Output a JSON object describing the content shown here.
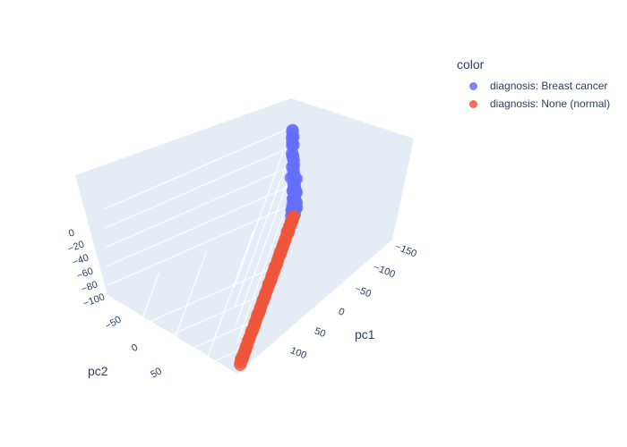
{
  "chart_data": {
    "type": "scatter",
    "dimensions": "3d",
    "axes": {
      "x": {
        "title": "pc1",
        "ticks": [
          -150,
          -100,
          -50,
          0,
          50,
          100
        ]
      },
      "y": {
        "title": "pc2",
        "ticks": [
          -50,
          0,
          50
        ]
      },
      "z": {
        "title": "",
        "ticks": [
          -100,
          -80,
          -60,
          -40,
          -20,
          0
        ]
      }
    },
    "legend": {
      "title": "color",
      "placement": "top-right",
      "entries": [
        {
          "label": "diagnosis: Breast cancer",
          "color": "#636efa"
        },
        {
          "label": "diagnosis: None (normal)",
          "color": "#EF553B"
        }
      ]
    },
    "series": [
      {
        "name": "diagnosis: Breast cancer",
        "color": "#636efa",
        "points": [
          [
            -150,
            -45,
            -5
          ],
          [
            -148,
            -45,
            -15
          ],
          [
            -145,
            -45,
            -25
          ],
          [
            -150,
            -45,
            -35
          ],
          [
            -148,
            -45,
            -10
          ],
          [
            -152,
            -45,
            -20
          ],
          [
            -146,
            -45,
            -28
          ],
          [
            -150,
            -45,
            -40
          ],
          [
            -148,
            -45,
            -45
          ],
          [
            -145,
            -45,
            -50
          ],
          [
            -152,
            -45,
            -55
          ],
          [
            -150,
            -45,
            -60
          ],
          [
            -147,
            -45,
            -63
          ],
          [
            -145,
            -45,
            -66
          ],
          [
            -150,
            -45,
            -68
          ],
          [
            -153,
            -45,
            -70
          ],
          [
            -148,
            -45,
            -72
          ],
          [
            -143,
            -45,
            -74
          ],
          [
            -140,
            -45,
            -78
          ],
          [
            -135,
            -45,
            -80
          ],
          [
            -146,
            -45,
            -83
          ],
          [
            -150,
            -45,
            -85
          ],
          [
            -142,
            -45,
            -86
          ],
          [
            -138,
            -45,
            -87
          ],
          [
            -156,
            -45,
            -88
          ],
          [
            -130,
            -45,
            -82
          ],
          [
            -160,
            -45,
            -60
          ],
          [
            -140,
            -45,
            -70
          ],
          [
            -135,
            -45,
            -45
          ],
          [
            -147,
            -45,
            -76
          ],
          [
            -152,
            -45,
            -79
          ],
          [
            -144,
            -45,
            -81
          ],
          [
            -149,
            -45,
            -50
          ],
          [
            -146,
            -45,
            -58
          ],
          [
            -151,
            -45,
            -65
          ],
          [
            -139,
            -45,
            -84
          ],
          [
            -134,
            -45,
            -86
          ],
          [
            -155,
            -45,
            -82
          ],
          [
            -128,
            -45,
            -87
          ],
          [
            -145,
            -45,
            -89
          ],
          [
            -148,
            -45,
            -30
          ],
          [
            -143,
            -45,
            -38
          ],
          [
            -153,
            -45,
            -12
          ],
          [
            -141,
            -45,
            -62
          ],
          [
            -137,
            -45,
            -75
          ],
          [
            -158,
            -45,
            -73
          ],
          [
            -132,
            -45,
            -77
          ],
          [
            -144,
            -45,
            -71
          ],
          [
            -151,
            -45,
            -4
          ],
          [
            -147,
            -45,
            -18
          ]
        ]
      },
      {
        "name": "diagnosis: None (normal)",
        "color": "#EF553B",
        "points": [
          [
            -138,
            -45,
            -88
          ],
          [
            -130,
            -45,
            -88
          ],
          [
            -122,
            -45,
            -88
          ],
          [
            -115,
            -45,
            -89
          ],
          [
            -105,
            -45,
            -88
          ],
          [
            -95,
            -45,
            -89
          ],
          [
            -85,
            -45,
            -88
          ],
          [
            -75,
            -45,
            -89
          ],
          [
            -65,
            -45,
            -88
          ],
          [
            -55,
            -45,
            -89
          ],
          [
            -48,
            -45,
            -88
          ],
          [
            -40,
            -45,
            -89
          ],
          [
            -30,
            -45,
            -88
          ],
          [
            -22,
            -45,
            -89
          ],
          [
            -15,
            -45,
            -88
          ],
          [
            -5,
            -45,
            -89
          ],
          [
            5,
            -45,
            -88
          ],
          [
            15,
            -45,
            -89
          ],
          [
            28,
            -45,
            -88
          ],
          [
            40,
            -45,
            -89
          ],
          [
            55,
            -45,
            -88
          ],
          [
            70,
            -45,
            -89
          ],
          [
            85,
            -45,
            -88
          ],
          [
            100,
            -45,
            -89
          ],
          [
            112,
            -45,
            -88
          ],
          [
            120,
            -45,
            -89
          ],
          [
            128,
            -45,
            -88
          ],
          [
            135,
            -45,
            -89
          ],
          [
            132,
            -45,
            -88
          ],
          [
            125,
            -45,
            -89
          ],
          [
            118,
            -45,
            -88
          ],
          [
            108,
            -45,
            -89
          ],
          [
            95,
            -45,
            -87
          ],
          [
            78,
            -45,
            -88
          ],
          [
            62,
            -45,
            -89
          ],
          [
            48,
            -45,
            -88
          ],
          [
            35,
            -45,
            -89
          ],
          [
            20,
            -45,
            -88
          ],
          [
            8,
            -45,
            -89
          ],
          [
            -10,
            -45,
            -88
          ],
          [
            -25,
            -45,
            -89
          ],
          [
            -35,
            -45,
            -88
          ],
          [
            -52,
            -45,
            -89
          ],
          [
            -68,
            -45,
            -88
          ],
          [
            -82,
            -45,
            -89
          ],
          [
            -98,
            -45,
            -88
          ],
          [
            -110,
            -45,
            -89
          ],
          [
            -125,
            -45,
            -88
          ],
          [
            -134,
            -45,
            -89
          ],
          [
            -140,
            -45,
            -88
          ],
          [
            -128,
            -45,
            -87
          ],
          [
            -118,
            -45,
            -87
          ],
          [
            -108,
            -45,
            -86
          ],
          [
            -90,
            -45,
            -88
          ],
          [
            -72,
            -45,
            -87
          ],
          [
            -58,
            -45,
            -88
          ],
          [
            -43,
            -45,
            -87
          ],
          [
            -28,
            -45,
            -88
          ],
          [
            -12,
            -45,
            -87
          ],
          [
            2,
            -45,
            -88
          ],
          [
            18,
            -45,
            -87
          ],
          [
            32,
            -45,
            -88
          ],
          [
            45,
            -45,
            -87
          ],
          [
            60,
            -45,
            -88
          ],
          [
            75,
            -45,
            -87
          ],
          [
            90,
            -45,
            -88
          ],
          [
            105,
            -45,
            -87
          ],
          [
            116,
            -45,
            -88
          ],
          [
            124,
            -45,
            -87
          ],
          [
            130,
            -45,
            -86
          ]
        ]
      }
    ]
  }
}
